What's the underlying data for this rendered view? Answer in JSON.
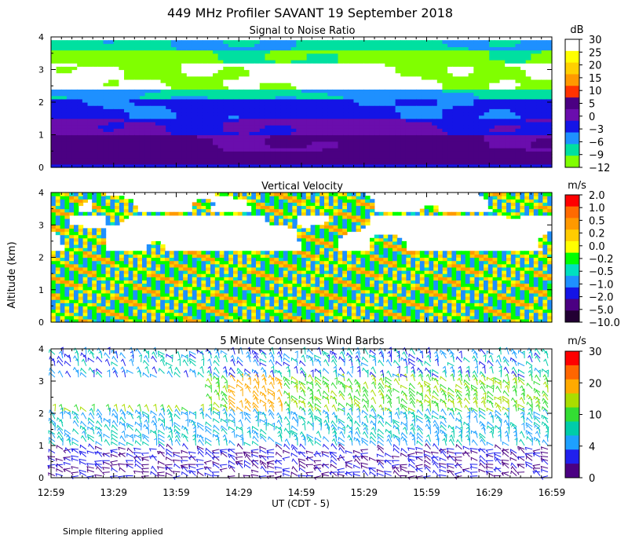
{
  "title": "449 MHz Profiler SAVANT 19 September 2018",
  "ylabel": "Altitude (km)",
  "xlabel": "UT  (CDT - 5)",
  "x_ticks": [
    "12:59",
    "13:29",
    "13:59",
    "14:29",
    "14:59",
    "15:29",
    "15:59",
    "16:29",
    "16:59"
  ],
  "y_ticks": [
    "0",
    "1",
    "2",
    "3",
    "4"
  ],
  "footnote": "Simple filtering applied",
  "chart_data": [
    {
      "type": "heatmap",
      "title": "Signal to Noise Ratio",
      "colorbar_unit": "dB",
      "colorbar_labels": [
        "30",
        "25",
        "20",
        "15",
        "10",
        "5",
        "0",
        "−3",
        "−6",
        "−9",
        "−12"
      ],
      "colorbar_colors": [
        "#ffffff",
        "#ffff00",
        "#ffd000",
        "#ff9900",
        "#ff3300",
        "#4b0082",
        "#6a0dad",
        "#1414e6",
        "#1e90ff",
        "#00e0a0",
        "#80ff00"
      ],
      "x_range": [
        "12:59",
        "16:59"
      ],
      "y_range_km": [
        0,
        4
      ]
    },
    {
      "type": "heatmap",
      "title": "Vertical Velocity",
      "colorbar_unit": "m/s",
      "colorbar_labels": [
        "2.0",
        "1.0",
        "0.5",
        "0.2",
        "0.0",
        "−0.2",
        "−0.5",
        "−1.0",
        "−2.0",
        "−5.0",
        "−10.0"
      ],
      "colorbar_colors": [
        "#ff0000",
        "#ff6a00",
        "#ff9900",
        "#ffcc00",
        "#ffff00",
        "#00ff00",
        "#00e0c0",
        "#1e90ff",
        "#1414e6",
        "#4b0082",
        "#220033"
      ],
      "x_range": [
        "12:59",
        "16:59"
      ],
      "y_range_km": [
        0,
        4
      ]
    },
    {
      "type": "scatter",
      "title": "5 Minute Consensus Wind Barbs",
      "colorbar_unit": "m/s",
      "colorbar_labels": [
        "30",
        "20",
        "10",
        "4",
        "0"
      ],
      "colorbar_colors": [
        "#ff0000",
        "#ff6600",
        "#ffaa00",
        "#aadd00",
        "#33dd33",
        "#00ccaa",
        "#1ea0ff",
        "#2020ee",
        "#4b0082"
      ],
      "x_range": [
        "12:59",
        "16:59"
      ],
      "y_range_km": [
        0,
        4
      ]
    }
  ]
}
